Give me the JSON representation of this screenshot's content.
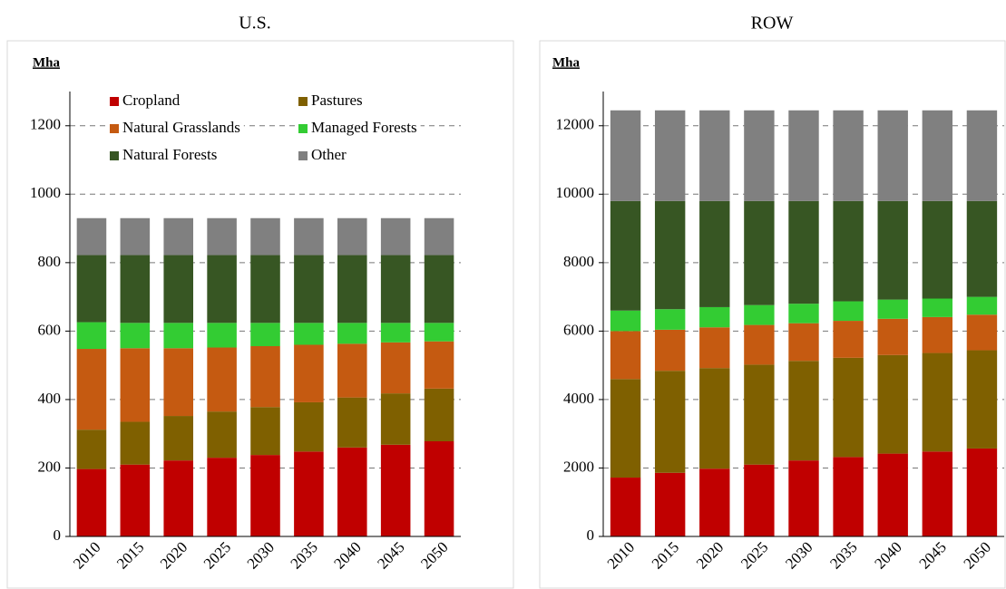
{
  "chart_data": [
    {
      "type": "bar",
      "stacked": true,
      "title": "U.S.",
      "ylabel": "Mha",
      "categories": [
        "2010",
        "2015",
        "2020",
        "2025",
        "2030",
        "2035",
        "2040",
        "2045",
        "2050"
      ],
      "ylim": [
        0,
        1300
      ],
      "yticks": [
        0,
        200,
        400,
        600,
        800,
        1000,
        1200
      ],
      "grid": true,
      "legend": "top-left",
      "series": [
        {
          "name": "Cropland",
          "color": "#c00000",
          "values": [
            197,
            210,
            222,
            230,
            238,
            248,
            260,
            268,
            278
          ]
        },
        {
          "name": "Pastures",
          "color": "#7f6000",
          "values": [
            115,
            125,
            130,
            135,
            140,
            144,
            146,
            150,
            154
          ]
        },
        {
          "name": "Natural Grasslands",
          "color": "#c55a11",
          "values": [
            236,
            215,
            198,
            187,
            178,
            168,
            157,
            149,
            138
          ]
        },
        {
          "name": "Managed Forests",
          "color": "#33cc33",
          "values": [
            78,
            74,
            74,
            72,
            68,
            64,
            61,
            57,
            54
          ]
        },
        {
          "name": "Natural Forests",
          "color": "#375623",
          "values": [
            196,
            198,
            198,
            198,
            198,
            198,
            198,
            198,
            198
          ]
        },
        {
          "name": "Other",
          "color": "#808080",
          "values": [
            108,
            108,
            108,
            108,
            108,
            108,
            108,
            108,
            108
          ]
        }
      ]
    },
    {
      "type": "bar",
      "stacked": true,
      "title": "ROW",
      "ylabel": "Mha",
      "categories": [
        "2010",
        "2015",
        "2020",
        "2025",
        "2030",
        "2035",
        "2040",
        "2045",
        "2050"
      ],
      "ylim": [
        0,
        13000
      ],
      "yticks": [
        0,
        2000,
        4000,
        6000,
        8000,
        10000,
        12000
      ],
      "grid": true,
      "series": [
        {
          "color": "#c00000",
          "values": [
            1720,
            1860,
            1980,
            2100,
            2220,
            2320,
            2420,
            2480,
            2570
          ]
        },
        {
          "color": "#7f6000",
          "values": [
            2880,
            2980,
            2940,
            2920,
            2910,
            2900,
            2880,
            2880,
            2870
          ]
        },
        {
          "color": "#c55a11",
          "values": [
            1400,
            1200,
            1190,
            1160,
            1100,
            1080,
            1060,
            1050,
            1040
          ]
        },
        {
          "color": "#33cc33",
          "values": [
            600,
            600,
            590,
            580,
            570,
            570,
            560,
            540,
            520
          ]
        },
        {
          "color": "#375623",
          "values": [
            3200,
            3160,
            3100,
            3040,
            3000,
            2930,
            2880,
            2850,
            2800
          ]
        },
        {
          "color": "#808080",
          "values": [
            2650,
            2650,
            2650,
            2650,
            2650,
            2650,
            2650,
            2650,
            2650
          ]
        }
      ]
    }
  ]
}
